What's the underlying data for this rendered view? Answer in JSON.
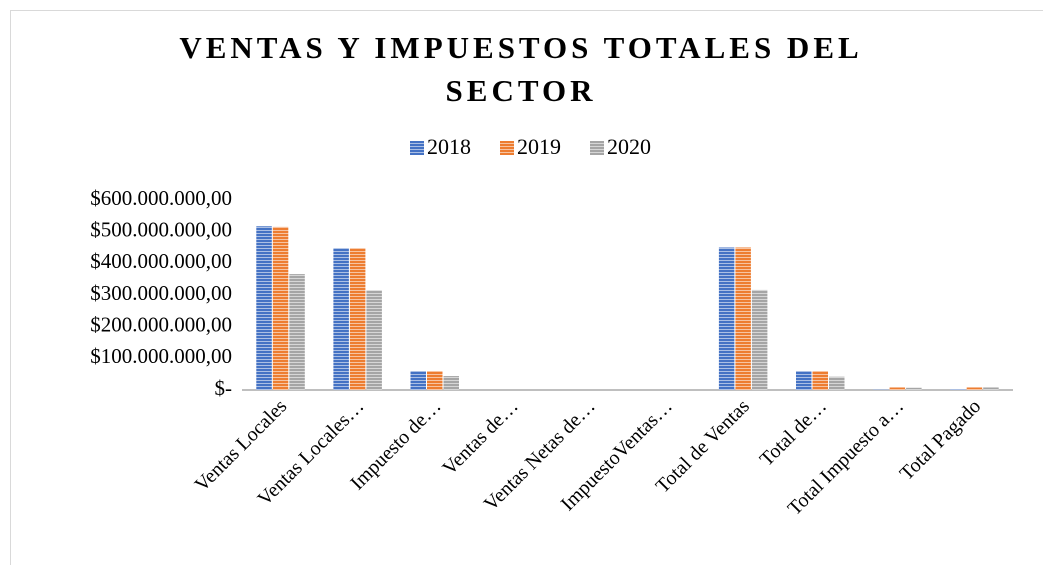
{
  "chart_data": {
    "type": "bar",
    "title": "VENTAS Y IMPUESTOS TOTALES DEL SECTOR",
    "categories": [
      "Ventas Locales",
      "Ventas Locales…",
      "Impuesto de…",
      "Ventas de…",
      "Ventas Netas de…",
      "ImpuestoVentas…",
      "Total de Ventas",
      "Total de…",
      "Total Impuesto a…",
      "Total Pagado"
    ],
    "series": [
      {
        "name": "2018",
        "color": "#4472c4",
        "values": [
          517000000,
          448000000,
          60000000,
          0,
          0,
          0,
          450000000,
          60000000,
          2000000,
          3000000
        ]
      },
      {
        "name": "2019",
        "color": "#ed7d31",
        "values": [
          515000000,
          448000000,
          60000000,
          0,
          0,
          0,
          450000000,
          60000000,
          8000000,
          8000000
        ]
      },
      {
        "name": "2020",
        "color": "#a5a5a5",
        "values": [
          366000000,
          315000000,
          44000000,
          0,
          0,
          0,
          316000000,
          42000000,
          7000000,
          8000000
        ]
      }
    ],
    "ylim": [
      0,
      600000000
    ],
    "yticks": [
      {
        "value": 0,
        "label": "$-"
      },
      {
        "value": 100000000,
        "label": "$100.000.000,00"
      },
      {
        "value": 200000000,
        "label": "$200.000.000,00"
      },
      {
        "value": 300000000,
        "label": "$300.000.000,00"
      },
      {
        "value": 400000000,
        "label": "$400.000.000,00"
      },
      {
        "value": 500000000,
        "label": "$500.000.000,00"
      },
      {
        "value": 600000000,
        "label": "$600.000.000,00"
      }
    ],
    "grid": false,
    "legend": "top"
  }
}
